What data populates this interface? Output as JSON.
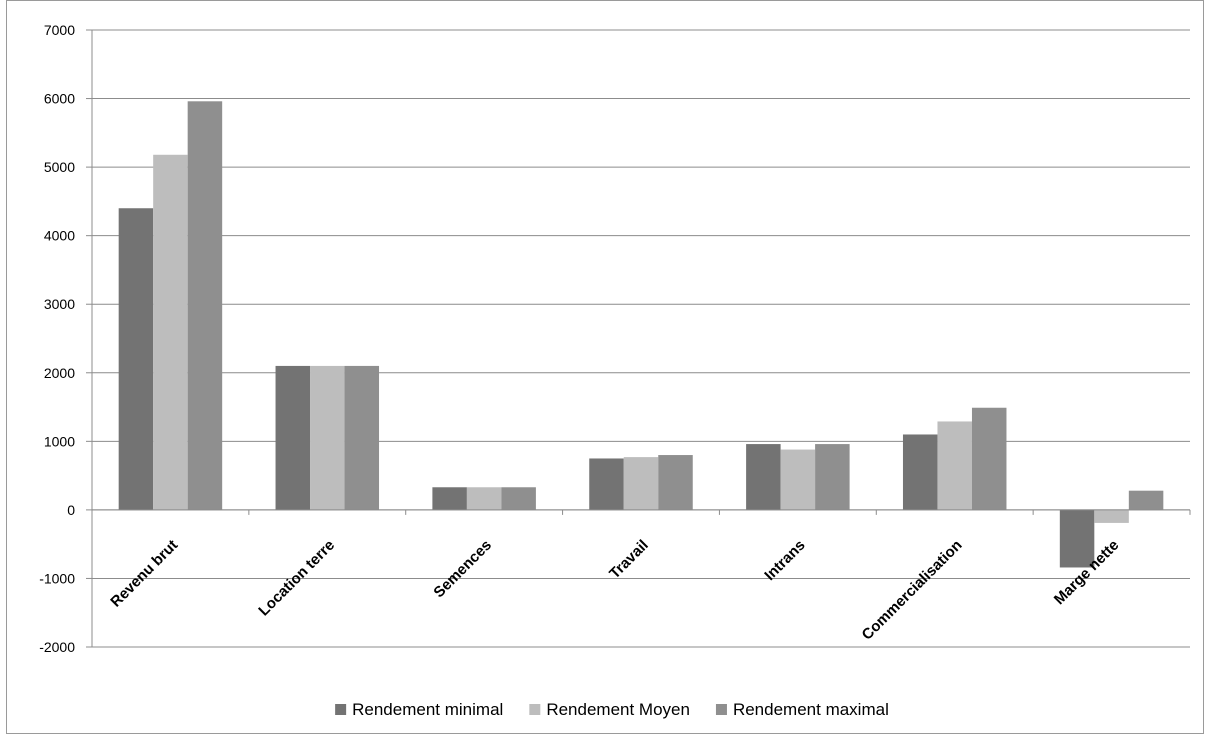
{
  "chart_data": {
    "type": "bar",
    "title": "",
    "xlabel": "",
    "ylabel": "",
    "categories": [
      "Revenu brut",
      "Location terre",
      "Semences",
      "Travail",
      "Intrans",
      "Commercialisation",
      "Marge nette"
    ],
    "series": [
      {
        "name": "Rendement minimal",
        "color": "#737373",
        "values": [
          4400,
          2100,
          330,
          750,
          960,
          1100,
          -840
        ]
      },
      {
        "name": "Rendement Moyen",
        "color": "#bdbdbd",
        "values": [
          5180,
          2100,
          330,
          770,
          880,
          1290,
          -190
        ]
      },
      {
        "name": "Rendement maximal",
        "color": "#8f8f8f",
        "values": [
          5960,
          2100,
          330,
          800,
          960,
          1490,
          280
        ]
      }
    ],
    "ylim": [
      -2000,
      7000
    ],
    "yticks": [
      -2000,
      -1000,
      0,
      1000,
      2000,
      3000,
      4000,
      5000,
      6000,
      7000
    ],
    "grid": true,
    "legend_position": "bottom"
  }
}
